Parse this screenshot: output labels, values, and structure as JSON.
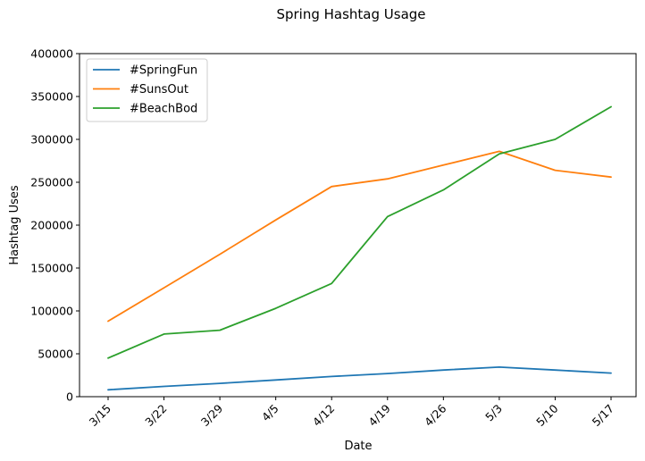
{
  "chart_data": {
    "type": "line",
    "title": "Spring Hashtag Usage",
    "xlabel": "Date",
    "ylabel": "Hashtag Uses",
    "categories": [
      "3/15",
      "3/22",
      "3/29",
      "4/5",
      "4/12",
      "4/19",
      "4/26",
      "5/3",
      "5/10",
      "5/17"
    ],
    "ylim": [
      0,
      400000
    ],
    "yticks": [
      0,
      50000,
      100000,
      150000,
      200000,
      250000,
      300000,
      350000,
      400000
    ],
    "grid": false,
    "legend_position": "top-left",
    "series": [
      {
        "name": "#SpringFun",
        "color": "#1f77b4",
        "values": [
          8000,
          12000,
          15500,
          19500,
          23500,
          27000,
          31000,
          34500,
          31000,
          27500
        ]
      },
      {
        "name": "#SunsOut",
        "color": "#ff7f0e",
        "values": [
          88000,
          127000,
          166000,
          206000,
          245000,
          254000,
          270000,
          286000,
          264000,
          256000
        ]
      },
      {
        "name": "#BeachBod",
        "color": "#2ca02c",
        "values": [
          45000,
          73000,
          77500,
          103000,
          132000,
          210000,
          241000,
          283000,
          300000,
          338000
        ]
      }
    ]
  }
}
